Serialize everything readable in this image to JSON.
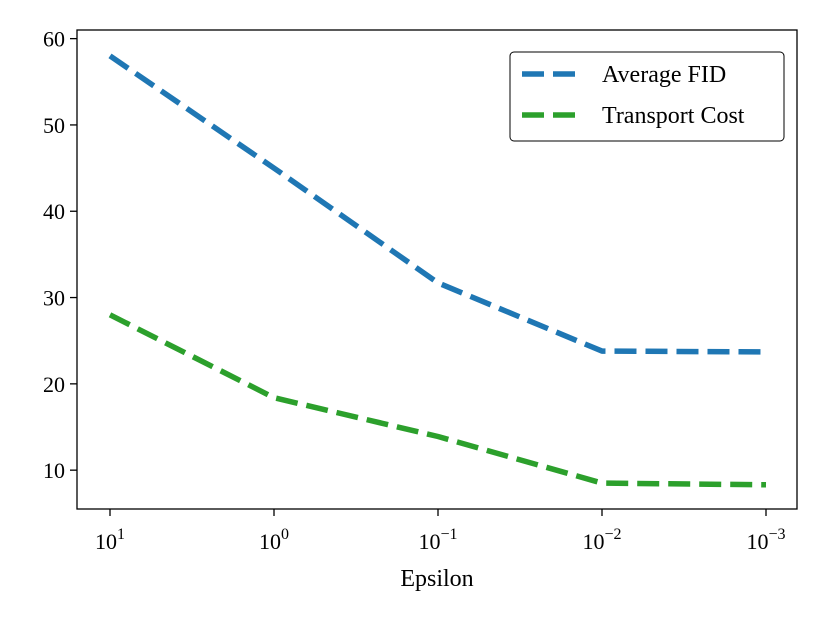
{
  "chart_data": {
    "type": "line",
    "title": "",
    "xlabel": "Epsilon",
    "ylabel": "",
    "x": [
      "10^1",
      "10^0",
      "10^-1",
      "10^-2",
      "10^-3"
    ],
    "x_tick_labels": [
      {
        "base": "10",
        "exp": "1"
      },
      {
        "base": "10",
        "exp": "0"
      },
      {
        "base": "10",
        "exp": "−1"
      },
      {
        "base": "10",
        "exp": "−2"
      },
      {
        "base": "10",
        "exp": "−3"
      }
    ],
    "ylim": [
      5.5,
      61
    ],
    "yticks": [
      10,
      20,
      30,
      40,
      50,
      60
    ],
    "ytick_labels": [
      "10",
      "20",
      "30",
      "40",
      "50",
      "60"
    ],
    "grid": false,
    "legend_position": "top-right",
    "series": [
      {
        "name": "Average FID",
        "color": "#1f77b4",
        "values": [
          58,
          45,
          31.7,
          23.8,
          23.7
        ]
      },
      {
        "name": "Transport Cost",
        "color": "#2ca02c",
        "values": [
          28,
          18.4,
          13.9,
          8.5,
          8.3
        ]
      }
    ]
  }
}
